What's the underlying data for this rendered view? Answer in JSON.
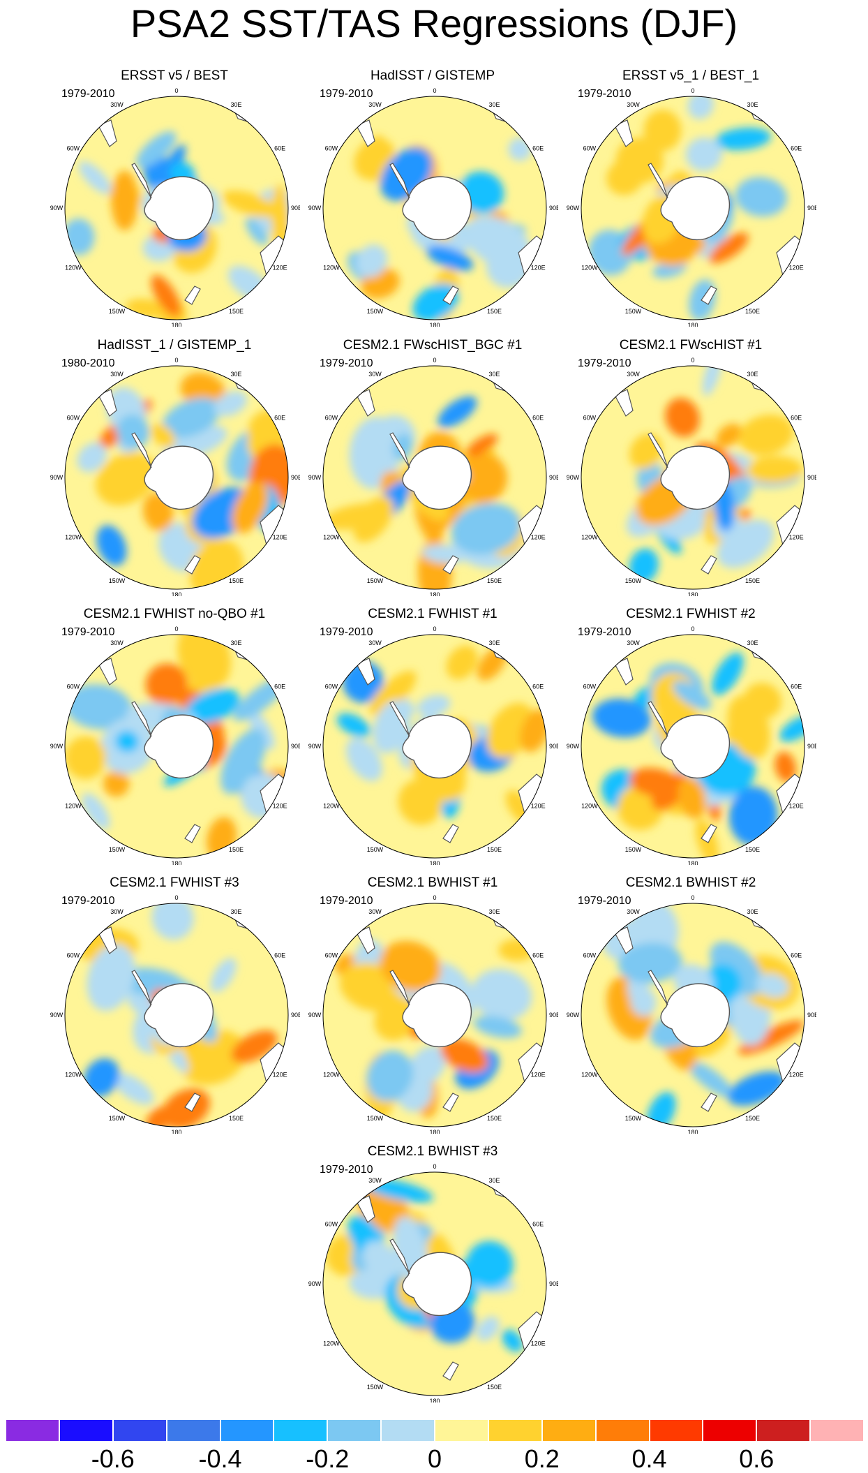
{
  "title": "PSA2 SST/TAS Regressions (DJF)",
  "lon_labels": [
    "0",
    "30E",
    "60E",
    "90E",
    "120E",
    "150E",
    "180",
    "150W",
    "120W",
    "90W",
    "60W",
    "30W"
  ],
  "panels": [
    {
      "title": "ERSST v5 / BEST",
      "years": "1979-2010"
    },
    {
      "title": "HadISST / GISTEMP",
      "years": "1979-2010"
    },
    {
      "title": "ERSST v5_1 / BEST_1",
      "years": "1979-2010"
    },
    {
      "title": "HadISST_1 / GISTEMP_1",
      "years": "1980-2010"
    },
    {
      "title": "CESM2.1 FWscHIST_BGC #1",
      "years": "1979-2010"
    },
    {
      "title": "CESM2.1 FWscHIST #1",
      "years": "1979-2010"
    },
    {
      "title": "CESM2.1 FWHIST no-QBO #1",
      "years": "1979-2010"
    },
    {
      "title": "CESM2.1 FWHIST #1",
      "years": "1979-2010"
    },
    {
      "title": "CESM2.1 FWHIST #2",
      "years": "1979-2010"
    },
    {
      "title": "CESM2.1 FWHIST #3",
      "years": "1979-2010"
    },
    {
      "title": "CESM2.1 BWHIST #1",
      "years": "1979-2010"
    },
    {
      "title": "CESM2.1 BWHIST #2",
      "years": "1979-2010"
    },
    {
      "title": "CESM2.1 BWHIST #3",
      "years": "1979-2010"
    }
  ],
  "colorbar": {
    "colors": [
      "#8a2be2",
      "#1a0dff",
      "#3146f0",
      "#3c79ea",
      "#2496ff",
      "#17c0ff",
      "#7cc8f2",
      "#b3dcf3",
      "#fff597",
      "#ffd22f",
      "#ffad12",
      "#ff7d08",
      "#ff3a00",
      "#ed0000",
      "#cd1f1f",
      "#ffb2b4"
    ],
    "tick_labels": [
      "-0.6",
      "-0.4",
      "-0.2",
      "0",
      "0.2",
      "0.4",
      "0.6"
    ]
  },
  "palette": {
    "ocean_base": "#fff597",
    "continent_outline": "#555555"
  }
}
